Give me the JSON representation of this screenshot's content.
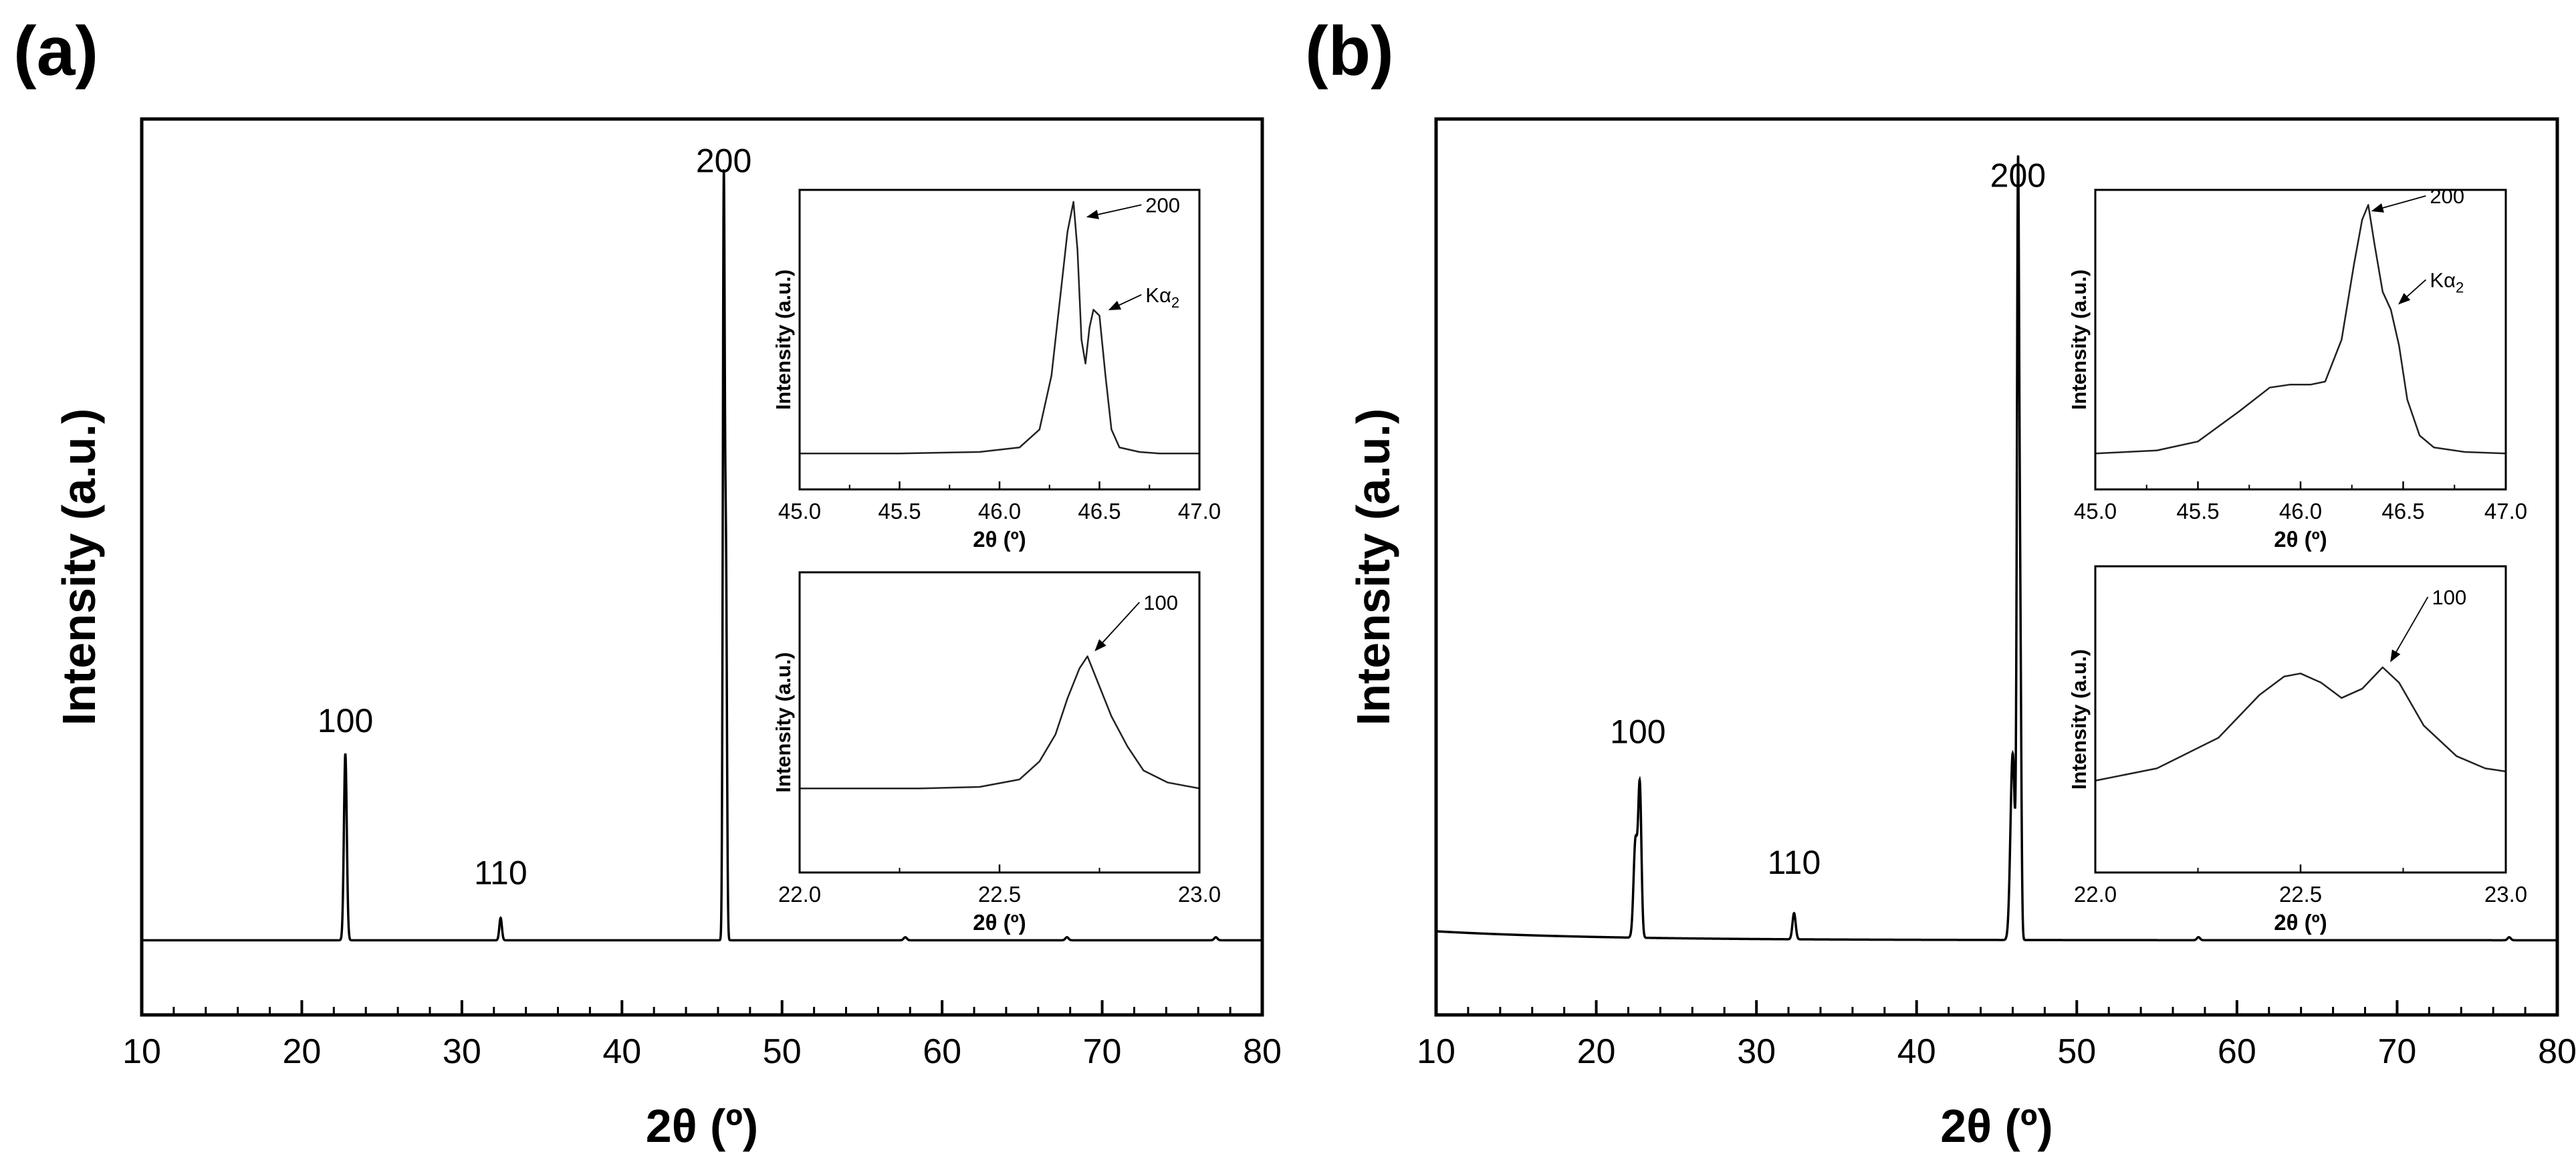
{
  "figure": {
    "panel_labels": [
      "(a)",
      "(b)"
    ]
  },
  "chart_data": [
    {
      "panel": "(a)",
      "type": "line",
      "xlabel": "2θ (º)",
      "ylabel": "Intensity (a.u.)",
      "xlim": [
        10,
        80
      ],
      "ylim": [
        -0.1,
        1.1
      ],
      "xticks": [
        10,
        20,
        30,
        40,
        50,
        60,
        70,
        80
      ],
      "baseline": 0.0,
      "peaks": [
        {
          "x": 22.72,
          "h": 0.25,
          "w": 0.09
        },
        {
          "x": 32.42,
          "h": 0.03,
          "w": 0.08
        },
        {
          "x": 46.36,
          "h": 1.0,
          "w": 0.06
        },
        {
          "x": 46.5,
          "h": 0.48,
          "w": 0.06
        },
        {
          "x": 57.7,
          "h": 0.004,
          "w": 0.1
        },
        {
          "x": 67.8,
          "h": 0.004,
          "w": 0.1
        },
        {
          "x": 77.1,
          "h": 0.004,
          "w": 0.1
        }
      ],
      "annotations": [
        {
          "text": "100",
          "x": 22.72,
          "y": 0.27
        },
        {
          "text": "110",
          "x": 32.42,
          "y": 0.066
        },
        {
          "text": "200",
          "x": 46.36,
          "y": 1.02
        }
      ],
      "insets": [
        {
          "xlim": [
            45.0,
            47.0
          ],
          "ylim": [
            0.0,
            1.0
          ],
          "xticks": [
            "45.0",
            "45.5",
            "46.0",
            "46.5",
            "47.0"
          ],
          "xlabel": "2θ (º)",
          "ylabel": "Intensity (a.u.)",
          "series_x": [
            45.0,
            45.5,
            45.9,
            46.1,
            46.2,
            46.26,
            46.3,
            46.34,
            46.37,
            46.39,
            46.41,
            46.43,
            46.45,
            46.47,
            46.5,
            46.53,
            46.56,
            46.6,
            46.7,
            46.8,
            47.0
          ],
          "series_y": [
            0.12,
            0.12,
            0.125,
            0.14,
            0.2,
            0.38,
            0.62,
            0.86,
            0.96,
            0.8,
            0.5,
            0.42,
            0.54,
            0.6,
            0.58,
            0.38,
            0.2,
            0.14,
            0.125,
            0.12,
            0.12
          ],
          "labels": [
            {
              "text": "200",
              "x": 46.73,
              "y": 0.95,
              "to_x": 46.44,
              "to_y": 0.91
            },
            {
              "text": "Kα",
              "sub": "2",
              "x": 46.73,
              "y": 0.65,
              "to_x": 46.55,
              "to_y": 0.6
            }
          ]
        },
        {
          "xlim": [
            22.0,
            23.0
          ],
          "ylim": [
            0.0,
            1.0
          ],
          "xticks": [
            "22.0",
            "22.5",
            "23.0"
          ],
          "xlabel": "2θ (º)",
          "ylabel": "Intensity (a.u.)",
          "series_x": [
            22.0,
            22.3,
            22.45,
            22.55,
            22.6,
            22.64,
            22.67,
            22.7,
            22.72,
            22.75,
            22.78,
            22.82,
            22.86,
            22.92,
            23.0
          ],
          "series_y": [
            0.28,
            0.28,
            0.285,
            0.31,
            0.37,
            0.46,
            0.58,
            0.68,
            0.72,
            0.62,
            0.52,
            0.42,
            0.34,
            0.3,
            0.28
          ],
          "labels": [
            {
              "text": "100",
              "x": 22.86,
              "y": 0.9,
              "to_x": 22.74,
              "to_y": 0.74
            }
          ]
        }
      ]
    },
    {
      "panel": "(b)",
      "type": "line",
      "xlabel": "2θ (º)",
      "ylabel": "Intensity (a.u.)",
      "xlim": [
        10,
        80
      ],
      "ylim": [
        -0.1,
        1.1
      ],
      "xticks": [
        10,
        20,
        30,
        40,
        50,
        60,
        70,
        80
      ],
      "baseline": 0.0,
      "peaks": [
        {
          "x": 22.45,
          "h": 0.13,
          "w": 0.12
        },
        {
          "x": 22.72,
          "h": 0.2,
          "w": 0.1
        },
        {
          "x": 32.35,
          "h": 0.035,
          "w": 0.1
        },
        {
          "x": 46.0,
          "h": 0.25,
          "w": 0.14
        },
        {
          "x": 46.33,
          "h": 0.98,
          "w": 0.07
        },
        {
          "x": 46.47,
          "h": 0.38,
          "w": 0.07
        },
        {
          "x": 57.6,
          "h": 0.004,
          "w": 0.1
        },
        {
          "x": 77.0,
          "h": 0.004,
          "w": 0.1
        }
      ],
      "annotations": [
        {
          "text": "100",
          "x": 22.6,
          "y": 0.255
        },
        {
          "text": "110",
          "x": 32.35,
          "y": 0.08
        },
        {
          "text": "200",
          "x": 46.33,
          "y": 1.0
        }
      ],
      "insets": [
        {
          "xlim": [
            45.0,
            47.0
          ],
          "ylim": [
            0.0,
            1.0
          ],
          "xticks": [
            "45.0",
            "45.5",
            "46.0",
            "46.5",
            "47.0"
          ],
          "xlabel": "2θ (º)",
          "ylabel": "Intensity (a.u.)",
          "series_x": [
            45.0,
            45.3,
            45.5,
            45.7,
            45.85,
            45.95,
            46.05,
            46.12,
            46.2,
            46.26,
            46.3,
            46.33,
            46.36,
            46.4,
            46.44,
            46.48,
            46.52,
            46.58,
            46.65,
            46.8,
            47.0
          ],
          "series_y": [
            0.12,
            0.13,
            0.16,
            0.26,
            0.34,
            0.35,
            0.35,
            0.36,
            0.5,
            0.75,
            0.9,
            0.95,
            0.82,
            0.66,
            0.6,
            0.48,
            0.3,
            0.18,
            0.14,
            0.125,
            0.12
          ],
          "labels": [
            {
              "text": "200",
              "x": 46.63,
              "y": 0.98,
              "to_x": 46.35,
              "to_y": 0.93
            },
            {
              "text": "Kα",
              "sub": "2",
              "x": 46.63,
              "y": 0.7,
              "to_x": 46.48,
              "to_y": 0.62
            }
          ]
        },
        {
          "xlim": [
            22.0,
            23.0
          ],
          "ylim": [
            0.0,
            1.0
          ],
          "xticks": [
            "22.0",
            "22.5",
            "23.0"
          ],
          "xlabel": "2θ (º)",
          "ylabel": "Intensity (a.u.)",
          "series_x": [
            22.0,
            22.15,
            22.3,
            22.4,
            22.46,
            22.5,
            22.55,
            22.6,
            22.65,
            22.7,
            22.74,
            22.8,
            22.88,
            22.95,
            23.0
          ],
          "series_y": [
            0.3,
            0.34,
            0.44,
            0.58,
            0.64,
            0.65,
            0.62,
            0.57,
            0.6,
            0.67,
            0.62,
            0.48,
            0.38,
            0.34,
            0.33
          ],
          "labels": [
            {
              "text": "100",
              "x": 22.82,
              "y": 0.9,
              "to_x": 22.72,
              "to_y": 0.69
            }
          ]
        }
      ]
    }
  ]
}
